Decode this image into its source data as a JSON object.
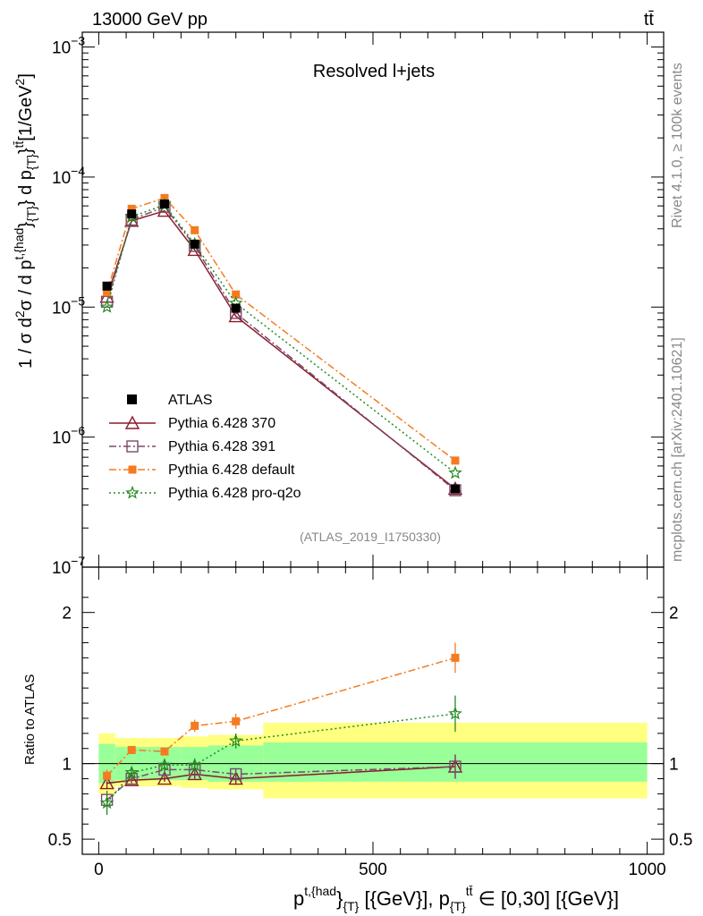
{
  "header": {
    "left": "13000 GeV pp",
    "right": "tt̄"
  },
  "side_text": {
    "rivet": "Rivet 4.1.0, ≥ 100k events",
    "arxiv": "mcplots.cern.ch [arXiv:2401.10621]"
  },
  "chart_data": {
    "type": "line",
    "title": "Resolved l+jets",
    "analysis_tag": "(ATLAS_2019_I1750330)",
    "xlabel": "p^{t,{had}}_{T} [{GeV}], p_{T}^{tt̄} ∈ [0,30] [{GeV}]",
    "xlabel_parts": {
      "main": "p",
      "sup1": "t,{had",
      "brace1": "}",
      "sub1": "{T}",
      "mid": " [{GeV}], p",
      "sub2": "{T}",
      "sup2": "tt̄",
      "tail": " ∈ [0,30] [{GeV}]"
    },
    "ylabel_main": "1 / σ d²σ / d p^{t,{had}}_{T} d p_{T}^{tt̄} [1/GeV²]",
    "ylabel_main_parts": {
      "p1": "1 / σ d",
      "s1": "2",
      "p2": "σ / d p",
      "s2": "t,{had",
      "p3": "}",
      "s3": "{T}",
      "p4": "} d p",
      "s4": "{T}",
      "p5": "}",
      "s5": "tt̄",
      "p6": "[1/GeV",
      "s6": "2",
      "p7": "]"
    },
    "ylabel_ratio": "Ratio to ATLAS",
    "xlim": [
      -30,
      1030
    ],
    "ylim": [
      1e-07,
      0.0013
    ],
    "ratio_ylim": [
      0.4,
      2.3
    ],
    "x_ticks": [
      0,
      500,
      1000
    ],
    "x_tick_labels": [
      "0",
      "500",
      "1000"
    ],
    "y_ticks": [
      1e-07,
      1e-06,
      1e-05,
      0.0001,
      0.001
    ],
    "y_tick_labels": [
      {
        "base": "10",
        "exp": "−7"
      },
      {
        "base": "10",
        "exp": "−6"
      },
      {
        "base": "10",
        "exp": "−5"
      },
      {
        "base": "10",
        "exp": "−4"
      },
      {
        "base": "10",
        "exp": "−3"
      }
    ],
    "ratio_ticks": [
      0.5,
      1,
      2
    ],
    "ratio_tick_labels": [
      "0.5",
      "1",
      "2"
    ],
    "bins": [
      [
        0,
        30
      ],
      [
        30,
        90
      ],
      [
        90,
        150
      ],
      [
        150,
        200
      ],
      [
        200,
        300
      ],
      [
        300,
        1000
      ]
    ],
    "x": [
      15,
      60,
      120,
      175,
      250,
      650
    ],
    "data": {
      "name": "ATLAS",
      "values": [
        1.45e-05,
        5.2e-05,
        6.2e-05,
        3.05e-05,
        9.8e-06,
        4e-07
      ]
    },
    "band_inner": [
      [
        0.87,
        1.13
      ],
      [
        0.89,
        1.11
      ],
      [
        0.89,
        1.11
      ],
      [
        0.89,
        1.11
      ],
      [
        0.88,
        1.12
      ],
      [
        0.88,
        1.14
      ]
    ],
    "band_outer": [
      [
        0.8,
        1.2
      ],
      [
        0.85,
        1.17
      ],
      [
        0.85,
        1.17
      ],
      [
        0.84,
        1.18
      ],
      [
        0.83,
        1.19
      ],
      [
        0.77,
        1.27
      ]
    ],
    "series": [
      {
        "name": "Pythia 6.428 370",
        "color": "#8b1a2b",
        "dash": "",
        "marker": "triangle",
        "values": [
          1.2e-05,
          4.6e-05,
          5.5e-05,
          2.75e-05,
          8.5e-06,
          4e-07
        ],
        "ratio": [
          0.87,
          0.89,
          0.9,
          0.93,
          0.9,
          0.98
        ],
        "ratio_err": [
          0.04,
          0.02,
          0.02,
          0.03,
          0.04,
          0.08
        ]
      },
      {
        "name": "Pythia 6.428 391",
        "color": "#7a4a6a",
        "dash": "8,3,2,3",
        "marker": "square-open",
        "values": [
          1.1e-05,
          4.7e-05,
          5.9e-05,
          2.95e-05,
          9e-06,
          3.9e-07
        ],
        "ratio": [
          0.76,
          0.9,
          0.96,
          0.96,
          0.93,
          0.98
        ],
        "ratio_err": [
          0.04,
          0.02,
          0.02,
          0.03,
          0.04,
          0.08
        ]
      },
      {
        "name": "Pythia 6.428 default",
        "color": "#f47b20",
        "dash": "8,3,2,3",
        "marker": "square",
        "values": [
          1.3e-05,
          5.7e-05,
          6.9e-05,
          3.9e-05,
          1.25e-05,
          6.6e-07
        ],
        "ratio": [
          0.92,
          1.09,
          1.08,
          1.25,
          1.28,
          1.7
        ],
        "ratio_err": [
          0.04,
          0.02,
          0.02,
          0.04,
          0.05,
          0.1
        ]
      },
      {
        "name": "Pythia 6.428 pro-q2o",
        "color": "#228b22",
        "dash": "2,3",
        "marker": "star",
        "values": [
          1e-05,
          4.95e-05,
          6.1e-05,
          3.05e-05,
          1.07e-05,
          5.3e-07
        ],
        "ratio": [
          0.74,
          0.94,
          0.99,
          0.99,
          1.15,
          1.33
        ],
        "ratio_err": [
          0.08,
          0.03,
          0.03,
          0.04,
          0.05,
          0.12
        ]
      }
    ],
    "legend_position": "middle-left"
  }
}
